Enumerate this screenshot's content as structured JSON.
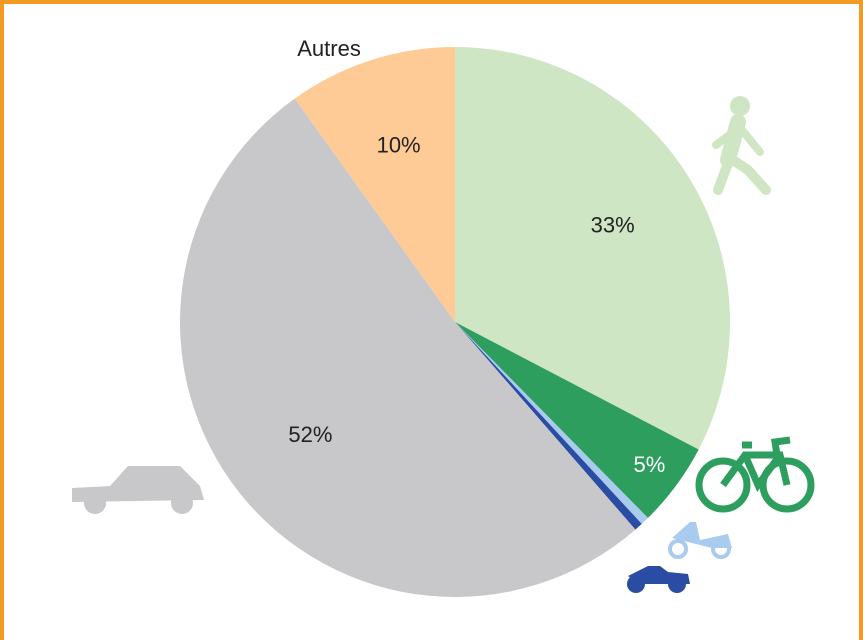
{
  "chart_data": {
    "type": "pie",
    "categories": [
      null,
      null,
      null,
      null,
      null,
      "Autres"
    ],
    "values": [
      33,
      5,
      0.5,
      0.5,
      52,
      10
    ],
    "value_labels": [
      "33%",
      "5%",
      null,
      null,
      "52%",
      "10%"
    ],
    "colors": [
      "#cfe6c4",
      "#2e9e5e",
      "#a9cbee",
      "#2b4ca3",
      "#c8c8ca",
      "#fecb96"
    ]
  }
}
